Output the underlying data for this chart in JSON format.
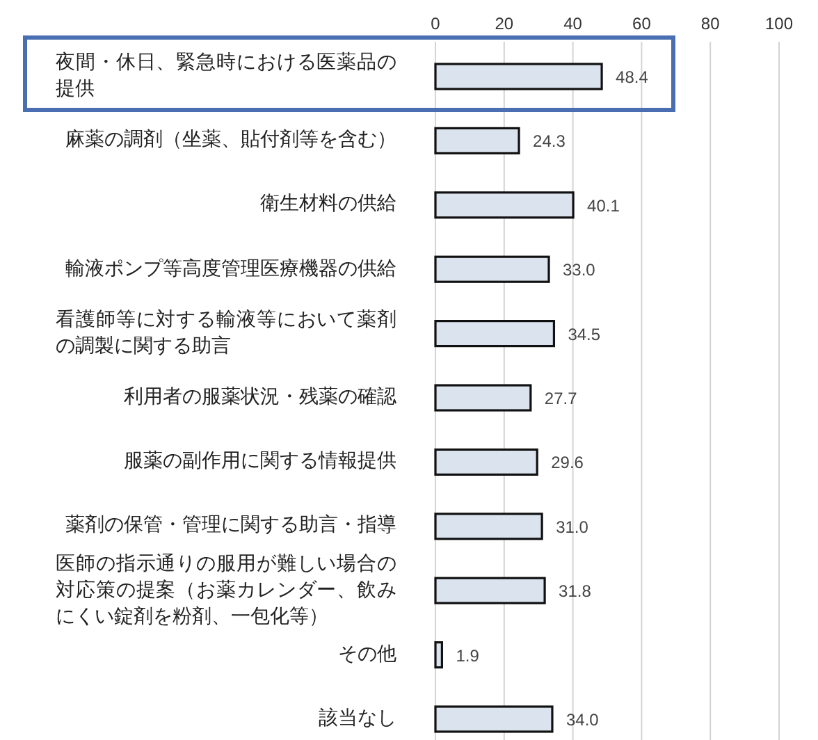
{
  "chart_data": {
    "type": "bar",
    "orientation": "horizontal",
    "categories": [
      "夜間・休日、緊急時における医薬品の提供",
      "麻薬の調剤（坐薬、貼付剤等を含む）",
      "衛生材料の供給",
      "輸液ポンプ等高度管理医療機器の供給",
      "看護師等に対する輸液等において薬剤の調製に関する助言",
      "利用者の服薬状況・残薬の確認",
      "服薬の副作用に関する情報提供",
      "薬剤の保管・管理に関する助言・指導",
      "医師の指示通りの服用が難しい場合の対応策の提案（お薬カレンダー、飲みにくい錠剤を粉剤、一包化等）",
      "その他",
      "該当なし"
    ],
    "values": [
      48.4,
      24.3,
      40.1,
      33.0,
      34.5,
      27.7,
      29.6,
      31.0,
      31.8,
      1.9,
      34.0
    ],
    "value_labels": [
      "48.4",
      "24.3",
      "40.1",
      "33.0",
      "34.5",
      "27.7",
      "29.6",
      "31.0",
      "31.8",
      "1.9",
      "34.0"
    ],
    "color": "#dae3ee",
    "xlim": [
      0,
      100
    ],
    "xticks": [
      0,
      20,
      40,
      60,
      80,
      100
    ],
    "grid": "x"
  }
}
